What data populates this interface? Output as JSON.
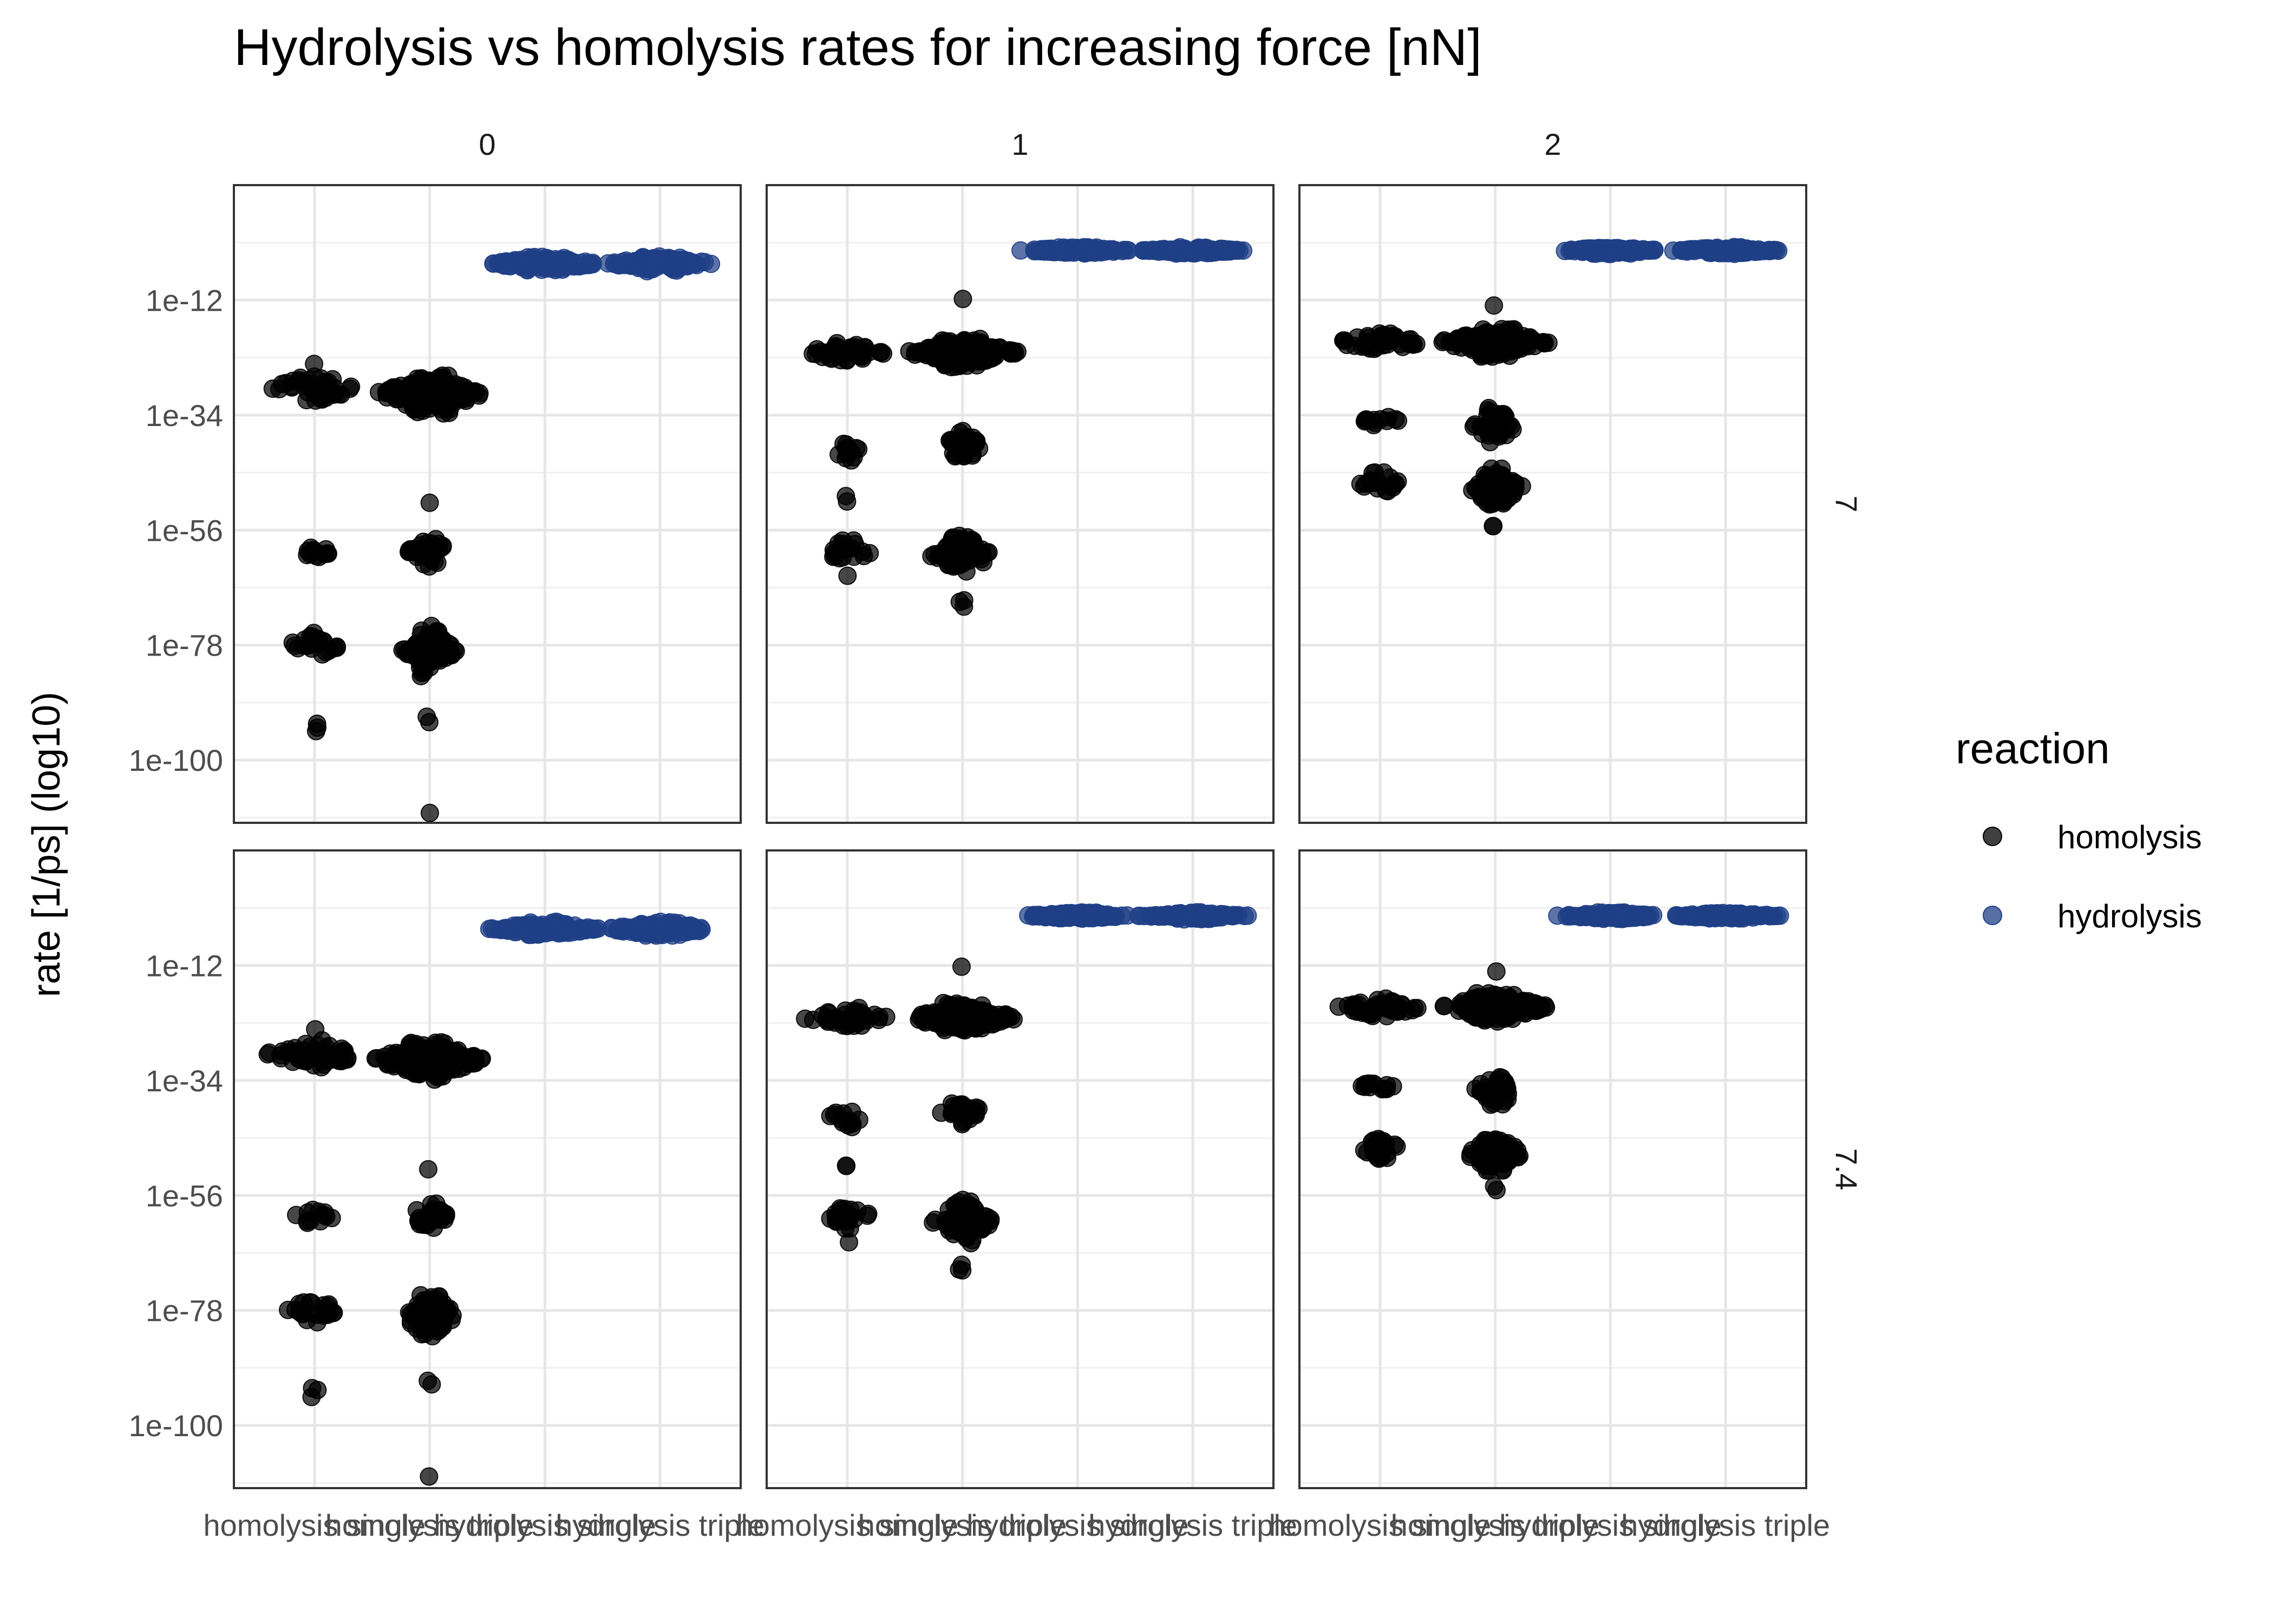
{
  "chart_data": {
    "type": "scatter",
    "subtype": "faceted beeswarm",
    "title": "Hydrolysis vs homolysis rates for increasing force [nN]",
    "xlabel": "",
    "ylabel": "rate [1/ps] (log10)",
    "y_scale": "log10",
    "ylim_log10": [
      -112,
      10
    ],
    "y_ticks": [
      {
        "log10": -12,
        "label": "1e-12"
      },
      {
        "log10": -34,
        "label": "1e-34"
      },
      {
        "log10": -56,
        "label": "1e-56"
      },
      {
        "log10": -78,
        "label": "1e-78"
      },
      {
        "log10": -100,
        "label": "1e-100"
      }
    ],
    "categories": [
      "homolysis single",
      "homolysis triple",
      "hydrolysis single",
      "hydrolysis triple"
    ],
    "facet_cols": [
      "0",
      "1",
      "2"
    ],
    "facet_rows": [
      "7",
      "7.4"
    ],
    "grid": true,
    "legend": {
      "title": "reaction",
      "placement": "right",
      "entries": [
        {
          "name": "homolysis",
          "color": "#000000"
        },
        {
          "name": "hydrolysis",
          "color": "#1f3f86"
        }
      ]
    },
    "colors": {
      "homolysis": "#000000",
      "hydrolysis": "#1f3f86"
    },
    "point_clusters": {
      "0": {
        "7": [
          {
            "category": "homolysis single",
            "reaction": "homolysis",
            "center_log10": -29,
            "spread": 3,
            "halfwidth": 0.45,
            "n": 45
          },
          {
            "category": "homolysis single",
            "reaction": "homolysis",
            "center_log10": -60,
            "spread": 1.5,
            "halfwidth": 0.2,
            "n": 12
          },
          {
            "category": "homolysis single",
            "reaction": "homolysis",
            "center_log10": -78,
            "spread": 3,
            "halfwidth": 0.25,
            "n": 22
          },
          {
            "category": "homolysis single",
            "reaction": "homolysis",
            "center_log10": -94,
            "spread": 2,
            "halfwidth": 0.06,
            "n": 3
          },
          {
            "category": "homolysis single",
            "reaction": "homolysis",
            "center_log10": -24,
            "spread": 0.3,
            "halfwidth": 0.02,
            "n": 1
          },
          {
            "category": "homolysis triple",
            "reaction": "homolysis",
            "center_log10": -30,
            "spread": 4,
            "halfwidth": 0.5,
            "n": 140
          },
          {
            "category": "homolysis triple",
            "reaction": "homolysis",
            "center_log10": -60,
            "spread": 3,
            "halfwidth": 0.2,
            "n": 30
          },
          {
            "category": "homolysis triple",
            "reaction": "homolysis",
            "center_log10": -79,
            "spread": 5,
            "halfwidth": 0.25,
            "n": 70
          },
          {
            "category": "homolysis triple",
            "reaction": "homolysis",
            "center_log10": -92,
            "spread": 1,
            "halfwidth": 0.04,
            "n": 2
          },
          {
            "category": "homolysis triple",
            "reaction": "homolysis",
            "center_log10": -110,
            "spread": 0.3,
            "halfwidth": 0.02,
            "n": 1
          },
          {
            "category": "homolysis triple",
            "reaction": "homolysis",
            "center_log10": -51,
            "spread": 0.3,
            "halfwidth": 0.02,
            "n": 1
          },
          {
            "category": "hydrolysis single",
            "reaction": "hydrolysis",
            "center_log10": -5,
            "spread": 1.5,
            "halfwidth": 0.5,
            "n": 120
          },
          {
            "category": "hydrolysis triple",
            "reaction": "hydrolysis",
            "center_log10": -5,
            "spread": 1.5,
            "halfwidth": 0.5,
            "n": 120
          }
        ],
        "7.4": [
          {
            "category": "homolysis single",
            "reaction": "homolysis",
            "center_log10": -29,
            "spread": 3,
            "halfwidth": 0.45,
            "n": 45
          },
          {
            "category": "homolysis single",
            "reaction": "homolysis",
            "center_log10": -60,
            "spread": 1.5,
            "halfwidth": 0.2,
            "n": 12
          },
          {
            "category": "homolysis single",
            "reaction": "homolysis",
            "center_log10": -78,
            "spread": 3,
            "halfwidth": 0.25,
            "n": 22
          },
          {
            "category": "homolysis single",
            "reaction": "homolysis",
            "center_log10": -94,
            "spread": 2,
            "halfwidth": 0.06,
            "n": 3
          },
          {
            "category": "homolysis single",
            "reaction": "homolysis",
            "center_log10": -24,
            "spread": 0.3,
            "halfwidth": 0.02,
            "n": 1
          },
          {
            "category": "homolysis triple",
            "reaction": "homolysis",
            "center_log10": -30,
            "spread": 4,
            "halfwidth": 0.5,
            "n": 140
          },
          {
            "category": "homolysis triple",
            "reaction": "homolysis",
            "center_log10": -60,
            "spread": 3,
            "halfwidth": 0.2,
            "n": 30
          },
          {
            "category": "homolysis triple",
            "reaction": "homolysis",
            "center_log10": -79,
            "spread": 5,
            "halfwidth": 0.25,
            "n": 70
          },
          {
            "category": "homolysis triple",
            "reaction": "homolysis",
            "center_log10": -92,
            "spread": 1,
            "halfwidth": 0.04,
            "n": 2
          },
          {
            "category": "homolysis triple",
            "reaction": "homolysis",
            "center_log10": -110,
            "spread": 0.3,
            "halfwidth": 0.02,
            "n": 1
          },
          {
            "category": "homolysis triple",
            "reaction": "homolysis",
            "center_log10": -51,
            "spread": 0.3,
            "halfwidth": 0.02,
            "n": 1
          },
          {
            "category": "hydrolysis single",
            "reaction": "hydrolysis",
            "center_log10": -5,
            "spread": 1.5,
            "halfwidth": 0.5,
            "n": 120
          },
          {
            "category": "hydrolysis triple",
            "reaction": "hydrolysis",
            "center_log10": -5,
            "spread": 1.5,
            "halfwidth": 0.5,
            "n": 120
          }
        ]
      },
      "1": {
        "7": [
          {
            "category": "homolysis single",
            "reaction": "homolysis",
            "center_log10": -22,
            "spread": 2,
            "halfwidth": 0.42,
            "n": 40
          },
          {
            "category": "homolysis single",
            "reaction": "homolysis",
            "center_log10": -41,
            "spread": 2,
            "halfwidth": 0.2,
            "n": 12
          },
          {
            "category": "homolysis single",
            "reaction": "homolysis",
            "center_log10": -60,
            "spread": 2.5,
            "halfwidth": 0.25,
            "n": 20
          },
          {
            "category": "homolysis single",
            "reaction": "homolysis",
            "center_log10": -50,
            "spread": 1,
            "halfwidth": 0.03,
            "n": 2
          },
          {
            "category": "homolysis single",
            "reaction": "homolysis",
            "center_log10": -65,
            "spread": 0.5,
            "halfwidth": 0.02,
            "n": 1
          },
          {
            "category": "homolysis triple",
            "reaction": "homolysis",
            "center_log10": -22,
            "spread": 3,
            "halfwidth": 0.5,
            "n": 140
          },
          {
            "category": "homolysis triple",
            "reaction": "homolysis",
            "center_log10": -40,
            "spread": 3.5,
            "halfwidth": 0.2,
            "n": 30
          },
          {
            "category": "homolysis triple",
            "reaction": "homolysis",
            "center_log10": -61,
            "spread": 4.5,
            "halfwidth": 0.28,
            "n": 70
          },
          {
            "category": "homolysis triple",
            "reaction": "homolysis",
            "center_log10": -12,
            "spread": 0.5,
            "halfwidth": 0.02,
            "n": 1
          },
          {
            "category": "homolysis triple",
            "reaction": "homolysis",
            "center_log10": -70,
            "spread": 1,
            "halfwidth": 0.04,
            "n": 3
          },
          {
            "category": "hydrolysis single",
            "reaction": "hydrolysis",
            "center_log10": -2.5,
            "spread": 0.7,
            "halfwidth": 0.5,
            "n": 120
          },
          {
            "category": "hydrolysis triple",
            "reaction": "hydrolysis",
            "center_log10": -2.5,
            "spread": 0.7,
            "halfwidth": 0.5,
            "n": 120
          }
        ],
        "7.4": [
          {
            "category": "homolysis single",
            "reaction": "homolysis",
            "center_log10": -22,
            "spread": 2,
            "halfwidth": 0.42,
            "n": 40
          },
          {
            "category": "homolysis single",
            "reaction": "homolysis",
            "center_log10": -41,
            "spread": 2,
            "halfwidth": 0.2,
            "n": 12
          },
          {
            "category": "homolysis single",
            "reaction": "homolysis",
            "center_log10": -60,
            "spread": 2.5,
            "halfwidth": 0.25,
            "n": 20
          },
          {
            "category": "homolysis single",
            "reaction": "homolysis",
            "center_log10": -50,
            "spread": 1,
            "halfwidth": 0.03,
            "n": 2
          },
          {
            "category": "homolysis single",
            "reaction": "homolysis",
            "center_log10": -65,
            "spread": 0.5,
            "halfwidth": 0.02,
            "n": 1
          },
          {
            "category": "homolysis triple",
            "reaction": "homolysis",
            "center_log10": -22,
            "spread": 3,
            "halfwidth": 0.5,
            "n": 140
          },
          {
            "category": "homolysis triple",
            "reaction": "homolysis",
            "center_log10": -40,
            "spread": 3.5,
            "halfwidth": 0.2,
            "n": 30
          },
          {
            "category": "homolysis triple",
            "reaction": "homolysis",
            "center_log10": -61,
            "spread": 4.5,
            "halfwidth": 0.28,
            "n": 70
          },
          {
            "category": "homolysis triple",
            "reaction": "homolysis",
            "center_log10": -12,
            "spread": 0.5,
            "halfwidth": 0.02,
            "n": 1
          },
          {
            "category": "homolysis triple",
            "reaction": "homolysis",
            "center_log10": -70,
            "spread": 1,
            "halfwidth": 0.04,
            "n": 3
          },
          {
            "category": "hydrolysis single",
            "reaction": "hydrolysis",
            "center_log10": -2.5,
            "spread": 0.7,
            "halfwidth": 0.5,
            "n": 120
          },
          {
            "category": "hydrolysis triple",
            "reaction": "hydrolysis",
            "center_log10": -2.5,
            "spread": 0.7,
            "halfwidth": 0.5,
            "n": 120
          }
        ]
      },
      "2": {
        "7": [
          {
            "category": "homolysis single",
            "reaction": "homolysis",
            "center_log10": -20,
            "spread": 2,
            "halfwidth": 0.42,
            "n": 40
          },
          {
            "category": "homolysis single",
            "reaction": "homolysis",
            "center_log10": -35,
            "spread": 1.2,
            "halfwidth": 0.18,
            "n": 12
          },
          {
            "category": "homolysis single",
            "reaction": "homolysis",
            "center_log10": -47,
            "spread": 2.5,
            "halfwidth": 0.22,
            "n": 20
          },
          {
            "category": "homolysis triple",
            "reaction": "homolysis",
            "center_log10": -20,
            "spread": 3,
            "halfwidth": 0.5,
            "n": 130
          },
          {
            "category": "homolysis triple",
            "reaction": "homolysis",
            "center_log10": -36,
            "spread": 4,
            "halfwidth": 0.2,
            "n": 30
          },
          {
            "category": "homolysis triple",
            "reaction": "homolysis",
            "center_log10": -48,
            "spread": 4,
            "halfwidth": 0.26,
            "n": 60
          },
          {
            "category": "homolysis triple",
            "reaction": "homolysis",
            "center_log10": -13,
            "spread": 0.5,
            "halfwidth": 0.02,
            "n": 1
          },
          {
            "category": "homolysis triple",
            "reaction": "homolysis",
            "center_log10": -55,
            "spread": 1,
            "halfwidth": 0.03,
            "n": 2
          },
          {
            "category": "hydrolysis single",
            "reaction": "hydrolysis",
            "center_log10": -2.5,
            "spread": 0.7,
            "halfwidth": 0.5,
            "n": 120
          },
          {
            "category": "hydrolysis triple",
            "reaction": "hydrolysis",
            "center_log10": -2.5,
            "spread": 0.7,
            "halfwidth": 0.5,
            "n": 120
          }
        ],
        "7.4": [
          {
            "category": "homolysis single",
            "reaction": "homolysis",
            "center_log10": -20,
            "spread": 2,
            "halfwidth": 0.42,
            "n": 40
          },
          {
            "category": "homolysis single",
            "reaction": "homolysis",
            "center_log10": -35,
            "spread": 1.2,
            "halfwidth": 0.18,
            "n": 12
          },
          {
            "category": "homolysis single",
            "reaction": "homolysis",
            "center_log10": -47,
            "spread": 2.5,
            "halfwidth": 0.22,
            "n": 20
          },
          {
            "category": "homolysis triple",
            "reaction": "homolysis",
            "center_log10": -20,
            "spread": 3,
            "halfwidth": 0.5,
            "n": 130
          },
          {
            "category": "homolysis triple",
            "reaction": "homolysis",
            "center_log10": -36,
            "spread": 4,
            "halfwidth": 0.2,
            "n": 30
          },
          {
            "category": "homolysis triple",
            "reaction": "homolysis",
            "center_log10": -48,
            "spread": 4,
            "halfwidth": 0.26,
            "n": 60
          },
          {
            "category": "homolysis triple",
            "reaction": "homolysis",
            "center_log10": -13,
            "spread": 0.5,
            "halfwidth": 0.02,
            "n": 1
          },
          {
            "category": "homolysis triple",
            "reaction": "homolysis",
            "center_log10": -55,
            "spread": 1,
            "halfwidth": 0.03,
            "n": 2
          },
          {
            "category": "hydrolysis single",
            "reaction": "hydrolysis",
            "center_log10": -2.5,
            "spread": 0.7,
            "halfwidth": 0.5,
            "n": 120
          },
          {
            "category": "hydrolysis triple",
            "reaction": "hydrolysis",
            "center_log10": -2.5,
            "spread": 0.7,
            "halfwidth": 0.5,
            "n": 120
          }
        ]
      }
    }
  }
}
